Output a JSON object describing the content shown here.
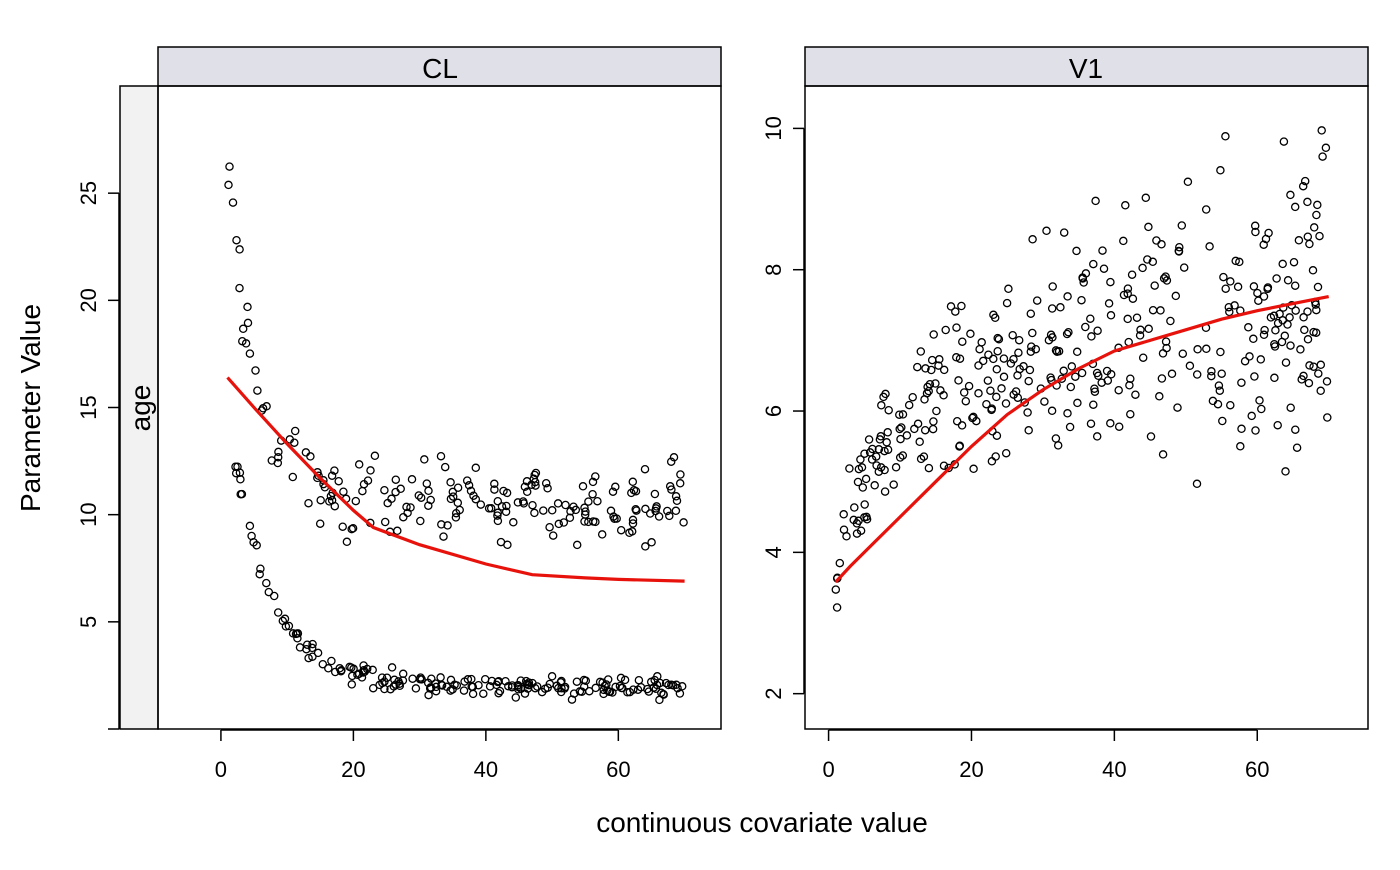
{
  "ylabel": "Parameter Value",
  "xlabel": "continuous covariate value",
  "row_strip": "age",
  "colors": {
    "strip": "#e0e0e8",
    "row_strip": "#f2f2f2",
    "trend": "#e8120c",
    "points": "#000000"
  },
  "chart_data": [
    {
      "type": "scatter",
      "title": "CL",
      "xlim": [
        -9.5,
        75.5
      ],
      "ylim": [
        0,
        30
      ],
      "x_ticks": [
        0,
        20,
        40,
        60
      ],
      "y_ticks": [
        5,
        10,
        15,
        20,
        25
      ],
      "grid": false,
      "trend_line": {
        "x": [
          1,
          5,
          10,
          15,
          20,
          23,
          30,
          40,
          47,
          55,
          60,
          70
        ],
        "y": [
          16.4,
          15.0,
          13.3,
          11.7,
          10.2,
          9.4,
          8.6,
          7.7,
          7.2,
          7.05,
          6.98,
          6.9
        ]
      }
    },
    {
      "type": "scatter",
      "title": "V1",
      "xlim": [
        -3.3,
        75.5
      ],
      "ylim": [
        1.5,
        10.6
      ],
      "x_ticks": [
        0,
        20,
        40,
        60
      ],
      "y_ticks": [
        2,
        4,
        6,
        8,
        10
      ],
      "grid": false,
      "trend_line": {
        "x": [
          1,
          3,
          6,
          10,
          15,
          20,
          25,
          30,
          35,
          40,
          45,
          50,
          55,
          60,
          65,
          70
        ],
        "y": [
          3.58,
          3.8,
          4.1,
          4.5,
          5.0,
          5.5,
          5.95,
          6.3,
          6.6,
          6.85,
          7.0,
          7.15,
          7.3,
          7.42,
          7.52,
          7.62
        ]
      }
    }
  ]
}
